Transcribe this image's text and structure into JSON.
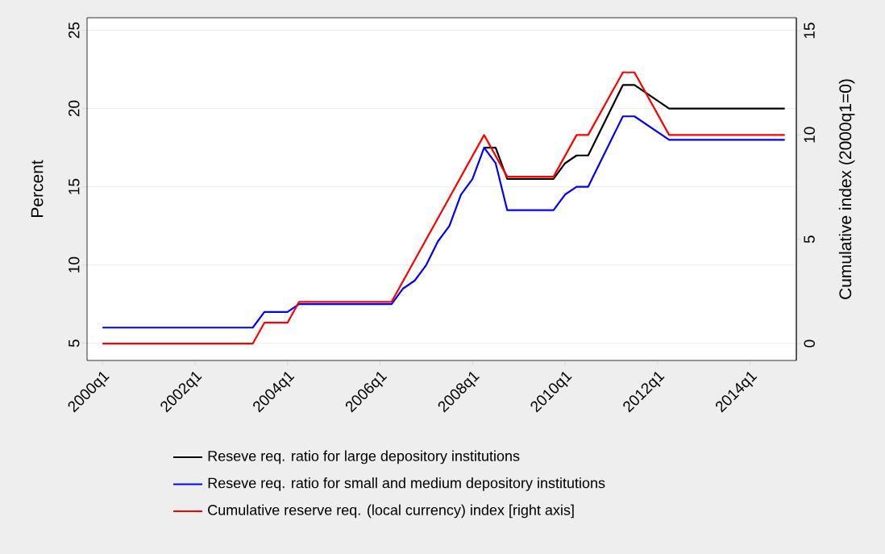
{
  "chart_data": {
    "type": "line",
    "ylabel": "Percent",
    "y2label": "Cumulative index (2000q1=0)",
    "xlim": [
      "1999-09",
      "2015-01"
    ],
    "ylim": [
      3.9,
      25.8
    ],
    "y2lim": [
      -0.81,
      15.62
    ],
    "xticks": [
      {
        "value": "2000-01",
        "label": "2000q1"
      },
      {
        "value": "2002-01",
        "label": "2002q1"
      },
      {
        "value": "2004-01",
        "label": "2004q1"
      },
      {
        "value": "2006-01",
        "label": "2006q1"
      },
      {
        "value": "2008-01",
        "label": "2008q1"
      },
      {
        "value": "2010-01",
        "label": "2010q1"
      },
      {
        "value": "2012-01",
        "label": "2012q1"
      },
      {
        "value": "2014-01",
        "label": "2014q1"
      }
    ],
    "yticks": [
      5,
      10,
      15,
      20,
      25
    ],
    "y2ticks": [
      0,
      5,
      10,
      15
    ],
    "grid": "y",
    "legend": "bottom",
    "series": [
      {
        "name": "Reseve req. ratio for large depository institutions",
        "color": "#000000",
        "x": [
          "2008-04",
          "2008-07",
          "2008-10",
          "2009-10",
          "2010-01",
          "2010-04",
          "2010-07",
          "2011-04",
          "2011-07",
          "2012-04",
          "2014-10"
        ],
        "values": [
          17.5,
          17.5,
          15.5,
          15.5,
          16.5,
          17,
          17,
          21.5,
          21.5,
          20,
          20
        ]
      },
      {
        "name": "Reseve req. ratio for small and medium depository institutions",
        "color": "#0000ff",
        "x": [
          "2000-01",
          "2003-04",
          "2003-07",
          "2004-01",
          "2004-04",
          "2006-04",
          "2006-07",
          "2006-10",
          "2007-01",
          "2007-04",
          "2007-07",
          "2007-10",
          "2008-01",
          "2008-04",
          "2008-07",
          "2008-10",
          "2009-10",
          "2010-01",
          "2010-04",
          "2010-07",
          "2011-04",
          "2011-07",
          "2012-04",
          "2014-10"
        ],
        "values": [
          6,
          6,
          7,
          7,
          7.5,
          7.5,
          8.5,
          9,
          10,
          11.5,
          12.5,
          14.5,
          15.5,
          17.5,
          16.5,
          13.5,
          13.5,
          14.5,
          15,
          15,
          19.5,
          19.5,
          18,
          18
        ]
      },
      {
        "name": "Cumulative reserve req. (local currency) index [right axis]",
        "color": "#ff0000",
        "axis": "y2",
        "x": [
          "2000-01",
          "2003-04",
          "2003-07",
          "2004-01",
          "2004-04",
          "2006-04",
          "2008-04",
          "2008-10",
          "2009-10",
          "2010-04",
          "2010-07",
          "2011-04",
          "2011-07",
          "2012-04",
          "2014-10"
        ],
        "values": [
          0,
          0,
          1,
          1,
          2,
          2,
          10,
          8,
          8,
          10,
          10,
          13,
          13,
          10,
          10
        ]
      }
    ]
  }
}
